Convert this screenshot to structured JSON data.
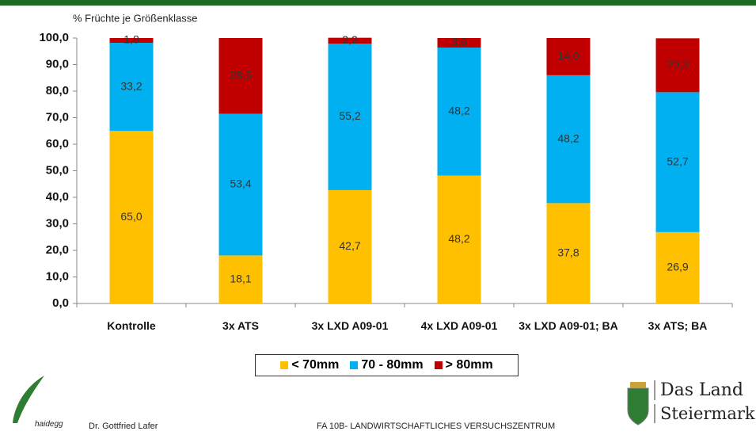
{
  "chart_data": {
    "type": "stacked-bar",
    "y_axis_title": "% Früchte je Größenklasse",
    "categories": [
      "Kontrolle",
      "3x ATS",
      "3x LXD A09-01",
      "4x LXD A09-01",
      "3x LXD A09-01; BA",
      "3x ATS; BA"
    ],
    "series": [
      {
        "name": "< 70mm",
        "color": "#FFC000",
        "values": [
          65.0,
          18.1,
          42.7,
          48.2,
          37.8,
          26.9
        ],
        "value_labels": [
          "65,0",
          "18,1",
          "42,7",
          "48,2",
          "37,8",
          "26,9"
        ]
      },
      {
        "name": "70 - 80mm",
        "color": "#00B0F0",
        "values": [
          33.2,
          53.4,
          55.2,
          48.2,
          48.2,
          52.7
        ],
        "value_labels": [
          "33,2",
          "53,4",
          "55,2",
          "48,2",
          "48,2",
          "52,7"
        ]
      },
      {
        "name": "> 80mm",
        "color": "#C00000",
        "values": [
          1.8,
          28.5,
          2.2,
          3.6,
          14.0,
          20.3
        ],
        "value_labels": [
          "1,8",
          "28,5",
          "2,2",
          "3,6",
          "14,0",
          "20,3"
        ]
      }
    ],
    "ylim": [
      0,
      100
    ],
    "yticks": [
      {
        "value": 0,
        "label": "0,0"
      },
      {
        "value": 10,
        "label": "10,0"
      },
      {
        "value": 20,
        "label": "20,0"
      },
      {
        "value": 30,
        "label": "30,0"
      },
      {
        "value": 40,
        "label": "40,0"
      },
      {
        "value": 50,
        "label": "50,0"
      },
      {
        "value": 60,
        "label": "60,0"
      },
      {
        "value": 70,
        "label": "70,0"
      },
      {
        "value": 80,
        "label": "80,0"
      },
      {
        "value": 90,
        "label": "90,0"
      },
      {
        "value": 100,
        "label": "100,0"
      }
    ],
    "grid": false,
    "legend": "bottom"
  },
  "footer": {
    "logo_text": "haidegg",
    "author": "Dr. Gottfried Lafer",
    "institution": "FA 10B- LANDWIRTSCHAFTLICHES VERSUCHSZENTRUM",
    "brand_line1": "Das Land",
    "brand_line2": "Steiermark"
  }
}
